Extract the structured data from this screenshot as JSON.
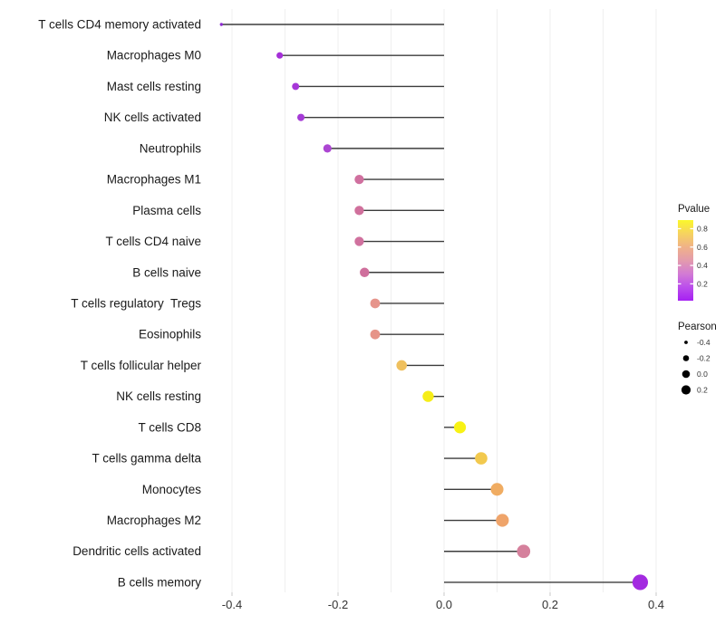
{
  "figure": {
    "background": "#ffffff"
  },
  "chart_data": {
    "type": "lollipop",
    "orientation": "horizontal",
    "title": "",
    "xlabel": "",
    "ylabel": "",
    "x_axis": {
      "range": [
        -0.44,
        0.43
      ],
      "ticks": [
        -0.4,
        -0.2,
        0.0,
        0.2,
        0.4
      ],
      "tick_labels": [
        "-0.4",
        "-0.2",
        "0.0",
        "0.2",
        "0.4"
      ],
      "gridline_step": 0.1,
      "grid_on": true
    },
    "rows": [
      {
        "label": "T cells CD4 memory activated",
        "pearson": -0.42,
        "color": "#8C2BD0"
      },
      {
        "label": "Macrophages M0",
        "pearson": -0.31,
        "color": "#A52FD8"
      },
      {
        "label": "Mast cells resting",
        "pearson": -0.28,
        "color": "#A637D8"
      },
      {
        "label": "NK cells activated",
        "pearson": -0.27,
        "color": "#A53BD6"
      },
      {
        "label": "Neutrophils",
        "pearson": -0.22,
        "color": "#AC46D2"
      },
      {
        "label": "Macrophages M1",
        "pearson": -0.16,
        "color": "#D0709F"
      },
      {
        "label": "Plasma cells",
        "pearson": -0.16,
        "color": "#D0709C"
      },
      {
        "label": "T cells CD4 naive",
        "pearson": -0.16,
        "color": "#D0719E"
      },
      {
        "label": "B cells naive",
        "pearson": -0.15,
        "color": "#CF6F9C"
      },
      {
        "label": "T cells regulatory  Tregs",
        "pearson": -0.13,
        "color": "#E6948B"
      },
      {
        "label": "Eosinophils",
        "pearson": -0.13,
        "color": "#E69488"
      },
      {
        "label": "T cells follicular helper",
        "pearson": -0.08,
        "color": "#EFC05E"
      },
      {
        "label": "NK cells resting",
        "pearson": -0.03,
        "color": "#F6ED18"
      },
      {
        "label": "T cells CD8",
        "pearson": 0.03,
        "color": "#F8F215"
      },
      {
        "label": "T cells gamma delta",
        "pearson": 0.07,
        "color": "#F2C94E"
      },
      {
        "label": "Monocytes",
        "pearson": 0.1,
        "color": "#F0AC62"
      },
      {
        "label": "Macrophages M2",
        "pearson": 0.11,
        "color": "#EFA46A"
      },
      {
        "label": "Dendritic cells activated",
        "pearson": 0.15,
        "color": "#D5809C"
      },
      {
        "label": "B cells memory",
        "pearson": 0.37,
        "color": "#A32BE0"
      }
    ],
    "legend_pvalue": {
      "title": "Pvalue",
      "tick_labels": [
        "0.8",
        "0.6",
        "0.4",
        "0.2"
      ],
      "gradient_top_to_bottom": [
        "#FBF72B",
        "#F6D35F",
        "#F0B288",
        "#E39BAD",
        "#D27BD4",
        "#BB4EEC",
        "#A620F2"
      ]
    },
    "legend_pearson": {
      "title": "Pearson",
      "items": [
        {
          "label": "-0.4"
        },
        {
          "label": "-0.2"
        },
        {
          "label": "0.0"
        },
        {
          "label": "0.2"
        }
      ],
      "dot_color": "#000000"
    }
  },
  "style": {
    "stem_color": "#3C3C3C",
    "grid_color": "#EFEFEF",
    "axis_tick_color": "#C9C9C9",
    "axis_text_color": "#333333",
    "label_text_color": "#1A1A1A"
  }
}
